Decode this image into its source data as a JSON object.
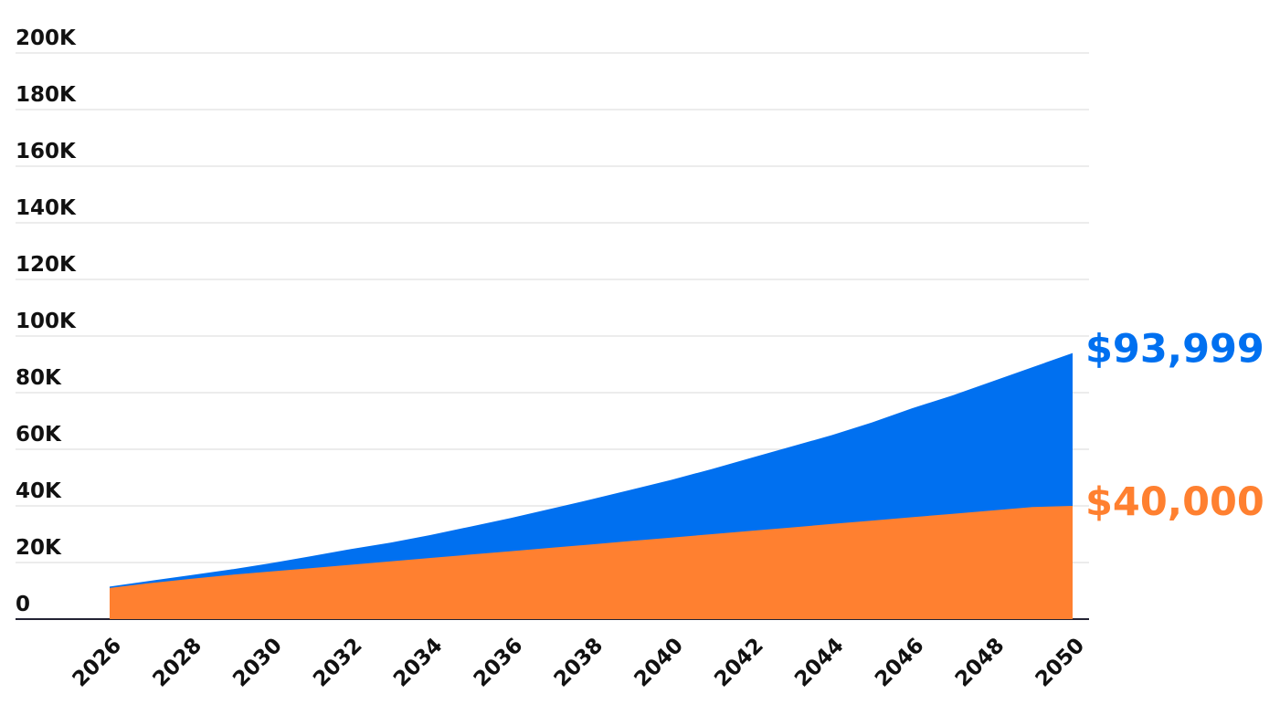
{
  "chart_data": {
    "type": "area",
    "title": "",
    "xlabel": "",
    "ylabel": "",
    "x": [
      2026,
      2027,
      2028,
      2029,
      2030,
      2031,
      2032,
      2033,
      2034,
      2035,
      2036,
      2037,
      2038,
      2039,
      2040,
      2041,
      2042,
      2043,
      2044,
      2045,
      2046,
      2047,
      2048,
      2049,
      2050
    ],
    "xticks": [
      "2026",
      "2028",
      "2030",
      "2032",
      "2034",
      "2036",
      "2038",
      "2040",
      "2042",
      "2044",
      "2046",
      "2048",
      "2050"
    ],
    "yticks": [
      "0",
      "20K",
      "40K",
      "60K",
      "80K",
      "100K",
      "120K",
      "140K",
      "160K",
      "180K",
      "200K"
    ],
    "ylim": [
      0,
      200000
    ],
    "grid": true,
    "legend": "none",
    "series": [
      {
        "color": "#0070f0",
        "end_label": "$93,999",
        "values": [
          11500,
          13500,
          15500,
          17500,
          19700,
          22200,
          24700,
          27000,
          29700,
          32700,
          35700,
          39000,
          42300,
          45700,
          49200,
          53000,
          57000,
          61000,
          65000,
          69500,
          74500,
          79000,
          84000,
          89000,
          93999
        ]
      },
      {
        "color": "#ff8030",
        "end_label": "$40,000",
        "values": [
          11000,
          12700,
          14200,
          15600,
          16800,
          18000,
          19200,
          20400,
          21600,
          22800,
          24000,
          25200,
          26400,
          27600,
          28800,
          30000,
          31200,
          32400,
          33600,
          34800,
          36000,
          37200,
          38400,
          39600,
          40000
        ]
      }
    ]
  }
}
